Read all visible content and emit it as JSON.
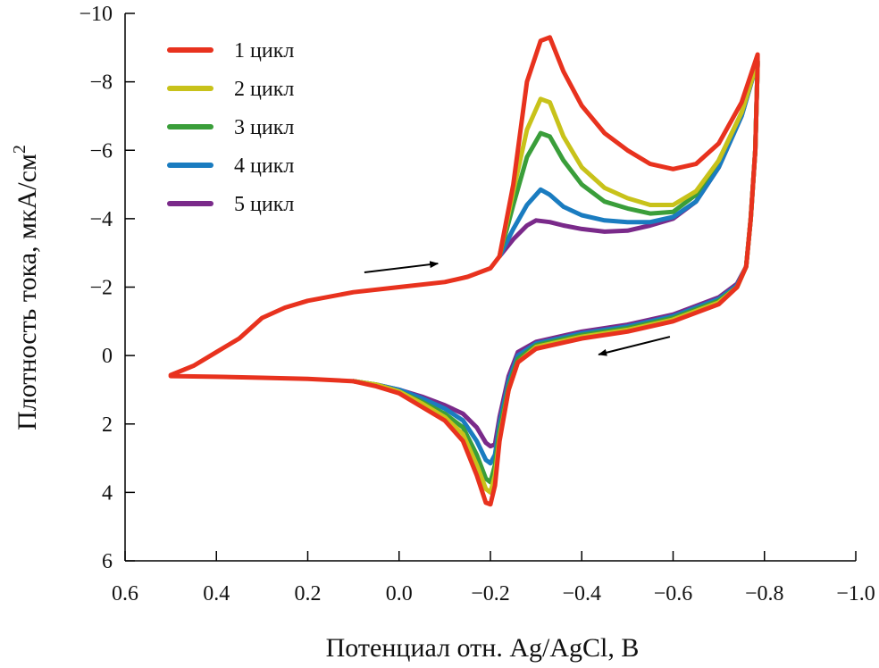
{
  "chart_data": {
    "type": "line",
    "xlabel": "Потенциал отн. Ag/AgCl, В",
    "ylabel_main": "Плотность тока, мкА/см",
    "ylabel_sup": "2",
    "xlim": [
      0.6,
      -1.0
    ],
    "ylim": [
      -10,
      6
    ],
    "x_reversed": true,
    "y_reversed": true,
    "grid": false,
    "legend_position": "top-left",
    "xticks": [
      0.6,
      0.4,
      0.2,
      0.0,
      -0.2,
      -0.4,
      -0.6,
      -0.8,
      -1.0
    ],
    "xtick_labels": [
      "0.6",
      "0.4",
      "0.2",
      "0.0",
      "−0.2",
      "−0.4",
      "−0.6",
      "−0.8",
      "−1.0"
    ],
    "yticks": [
      -10,
      -8,
      -6,
      -4,
      -2,
      0,
      2,
      4,
      6
    ],
    "ytick_labels": [
      "−10",
      "−8",
      "−6",
      "−4",
      "−2",
      "0",
      "2",
      "4",
      "6"
    ],
    "annotations": [
      {
        "type": "arrow",
        "from": [
          0.076,
          -2.43
        ],
        "to": [
          -0.085,
          -2.69
        ]
      },
      {
        "type": "arrow",
        "from": [
          -0.593,
          -0.55
        ],
        "to": [
          -0.437,
          -0.03
        ]
      }
    ],
    "series": [
      {
        "name": "1 цикл",
        "color": "#e8321e",
        "points": [
          [
            0.5,
            0.57
          ],
          [
            0.45,
            0.3
          ],
          [
            0.4,
            -0.1
          ],
          [
            0.35,
            -0.5
          ],
          [
            0.3,
            -1.1
          ],
          [
            0.25,
            -1.4
          ],
          [
            0.2,
            -1.6
          ],
          [
            0.1,
            -1.85
          ],
          [
            0.0,
            -2.0
          ],
          [
            -0.1,
            -2.15
          ],
          [
            -0.15,
            -2.3
          ],
          [
            -0.2,
            -2.55
          ],
          [
            -0.22,
            -2.9
          ],
          [
            -0.25,
            -5.0
          ],
          [
            -0.28,
            -8.0
          ],
          [
            -0.31,
            -9.2
          ],
          [
            -0.33,
            -9.3
          ],
          [
            -0.36,
            -8.3
          ],
          [
            -0.4,
            -7.3
          ],
          [
            -0.45,
            -6.5
          ],
          [
            -0.5,
            -6.0
          ],
          [
            -0.55,
            -5.6
          ],
          [
            -0.6,
            -5.45
          ],
          [
            -0.65,
            -5.6
          ],
          [
            -0.7,
            -6.2
          ],
          [
            -0.75,
            -7.4
          ],
          [
            -0.785,
            -8.8
          ],
          [
            -0.785,
            -8.5
          ],
          [
            -0.78,
            -6.0
          ],
          [
            -0.77,
            -4.0
          ],
          [
            -0.76,
            -2.6
          ],
          [
            -0.74,
            -2.0
          ],
          [
            -0.7,
            -1.5
          ],
          [
            -0.6,
            -1.0
          ],
          [
            -0.5,
            -0.7
          ],
          [
            -0.4,
            -0.5
          ],
          [
            -0.3,
            -0.2
          ],
          [
            -0.26,
            0.2
          ],
          [
            -0.24,
            1.0
          ],
          [
            -0.22,
            2.5
          ],
          [
            -0.21,
            3.8
          ],
          [
            -0.2,
            4.35
          ],
          [
            -0.19,
            4.3
          ],
          [
            -0.17,
            3.5
          ],
          [
            -0.14,
            2.5
          ],
          [
            -0.1,
            1.9
          ],
          [
            -0.05,
            1.5
          ],
          [
            0.0,
            1.1
          ],
          [
            0.05,
            0.9
          ],
          [
            0.1,
            0.75
          ],
          [
            0.2,
            0.68
          ],
          [
            0.3,
            0.65
          ],
          [
            0.4,
            0.62
          ],
          [
            0.5,
            0.6
          ]
        ]
      },
      {
        "name": "2 цикл",
        "color": "#c8c21a",
        "points": [
          [
            -0.22,
            -2.9
          ],
          [
            -0.25,
            -4.8
          ],
          [
            -0.28,
            -6.6
          ],
          [
            -0.31,
            -7.5
          ],
          [
            -0.33,
            -7.4
          ],
          [
            -0.36,
            -6.4
          ],
          [
            -0.4,
            -5.5
          ],
          [
            -0.45,
            -4.9
          ],
          [
            -0.5,
            -4.6
          ],
          [
            -0.55,
            -4.4
          ],
          [
            -0.6,
            -4.4
          ],
          [
            -0.65,
            -4.8
          ],
          [
            -0.7,
            -5.7
          ],
          [
            -0.75,
            -7.1
          ],
          [
            -0.785,
            -8.6
          ],
          [
            -0.785,
            -8.5
          ],
          [
            -0.78,
            -6.0
          ],
          [
            -0.77,
            -4.0
          ],
          [
            -0.76,
            -2.6
          ],
          [
            -0.74,
            -2.0
          ],
          [
            -0.7,
            -1.55
          ],
          [
            -0.6,
            -1.05
          ],
          [
            -0.5,
            -0.75
          ],
          [
            -0.4,
            -0.55
          ],
          [
            -0.3,
            -0.25
          ],
          [
            -0.26,
            0.2
          ],
          [
            -0.24,
            1.0
          ],
          [
            -0.22,
            2.4
          ],
          [
            -0.21,
            3.5
          ],
          [
            -0.2,
            4.0
          ],
          [
            -0.19,
            3.9
          ],
          [
            -0.17,
            3.2
          ],
          [
            -0.14,
            2.3
          ],
          [
            -0.1,
            1.8
          ],
          [
            -0.05,
            1.4
          ],
          [
            0.0,
            1.05
          ],
          [
            0.05,
            0.85
          ],
          [
            0.1,
            0.75
          ]
        ]
      },
      {
        "name": "3 цикл",
        "color": "#3a9e3a",
        "points": [
          [
            -0.22,
            -2.9
          ],
          [
            -0.25,
            -4.4
          ],
          [
            -0.28,
            -5.8
          ],
          [
            -0.31,
            -6.5
          ],
          [
            -0.33,
            -6.4
          ],
          [
            -0.36,
            -5.7
          ],
          [
            -0.4,
            -5.0
          ],
          [
            -0.45,
            -4.5
          ],
          [
            -0.5,
            -4.3
          ],
          [
            -0.55,
            -4.15
          ],
          [
            -0.6,
            -4.2
          ],
          [
            -0.65,
            -4.7
          ],
          [
            -0.7,
            -5.7
          ],
          [
            -0.75,
            -7.1
          ],
          [
            -0.785,
            -8.6
          ],
          [
            -0.785,
            -8.5
          ],
          [
            -0.78,
            -6.0
          ],
          [
            -0.77,
            -4.0
          ],
          [
            -0.76,
            -2.6
          ],
          [
            -0.74,
            -2.0
          ],
          [
            -0.7,
            -1.6
          ],
          [
            -0.6,
            -1.1
          ],
          [
            -0.5,
            -0.8
          ],
          [
            -0.4,
            -0.6
          ],
          [
            -0.3,
            -0.3
          ],
          [
            -0.26,
            0.1
          ],
          [
            -0.24,
            0.9
          ],
          [
            -0.22,
            2.2
          ],
          [
            -0.21,
            3.2
          ],
          [
            -0.2,
            3.7
          ],
          [
            -0.19,
            3.6
          ],
          [
            -0.17,
            2.9
          ],
          [
            -0.14,
            2.1
          ],
          [
            -0.1,
            1.7
          ],
          [
            -0.05,
            1.35
          ],
          [
            0.0,
            1.05
          ],
          [
            0.05,
            0.85
          ],
          [
            0.1,
            0.75
          ]
        ]
      },
      {
        "name": "4 цикл",
        "color": "#1a7cc0",
        "points": [
          [
            -0.22,
            -2.9
          ],
          [
            -0.25,
            -3.7
          ],
          [
            -0.28,
            -4.4
          ],
          [
            -0.31,
            -4.85
          ],
          [
            -0.33,
            -4.7
          ],
          [
            -0.36,
            -4.35
          ],
          [
            -0.4,
            -4.1
          ],
          [
            -0.45,
            -3.95
          ],
          [
            -0.5,
            -3.9
          ],
          [
            -0.55,
            -3.9
          ],
          [
            -0.6,
            -4.05
          ],
          [
            -0.65,
            -4.5
          ],
          [
            -0.7,
            -5.5
          ],
          [
            -0.75,
            -7.0
          ],
          [
            -0.785,
            -8.6
          ],
          [
            -0.785,
            -8.5
          ],
          [
            -0.78,
            -6.0
          ],
          [
            -0.77,
            -4.0
          ],
          [
            -0.76,
            -2.6
          ],
          [
            -0.74,
            -2.05
          ],
          [
            -0.7,
            -1.65
          ],
          [
            -0.6,
            -1.15
          ],
          [
            -0.5,
            -0.85
          ],
          [
            -0.4,
            -0.65
          ],
          [
            -0.3,
            -0.35
          ],
          [
            -0.26,
            0.0
          ],
          [
            -0.24,
            0.75
          ],
          [
            -0.22,
            2.0
          ],
          [
            -0.21,
            2.9
          ],
          [
            -0.2,
            3.15
          ],
          [
            -0.19,
            3.05
          ],
          [
            -0.17,
            2.5
          ],
          [
            -0.14,
            1.9
          ],
          [
            -0.1,
            1.55
          ],
          [
            -0.05,
            1.25
          ],
          [
            0.0,
            1.0
          ],
          [
            0.05,
            0.85
          ],
          [
            0.1,
            0.75
          ]
        ]
      },
      {
        "name": "5 цикл",
        "color": "#7a2a8a",
        "points": [
          [
            -0.22,
            -2.9
          ],
          [
            -0.25,
            -3.4
          ],
          [
            -0.28,
            -3.8
          ],
          [
            -0.3,
            -3.95
          ],
          [
            -0.33,
            -3.9
          ],
          [
            -0.36,
            -3.8
          ],
          [
            -0.4,
            -3.7
          ],
          [
            -0.45,
            -3.62
          ],
          [
            -0.5,
            -3.65
          ],
          [
            -0.55,
            -3.8
          ],
          [
            -0.6,
            -4.0
          ],
          [
            -0.65,
            -4.5
          ],
          [
            -0.7,
            -5.5
          ],
          [
            -0.75,
            -7.0
          ],
          [
            -0.785,
            -8.6
          ],
          [
            -0.785,
            -8.5
          ],
          [
            -0.78,
            -6.0
          ],
          [
            -0.77,
            -4.0
          ],
          [
            -0.76,
            -2.6
          ],
          [
            -0.74,
            -2.1
          ],
          [
            -0.7,
            -1.7
          ],
          [
            -0.6,
            -1.2
          ],
          [
            -0.5,
            -0.9
          ],
          [
            -0.4,
            -0.7
          ],
          [
            -0.3,
            -0.4
          ],
          [
            -0.26,
            -0.1
          ],
          [
            -0.24,
            0.6
          ],
          [
            -0.22,
            1.8
          ],
          [
            -0.21,
            2.6
          ],
          [
            -0.2,
            2.65
          ],
          [
            -0.19,
            2.55
          ],
          [
            -0.17,
            2.1
          ],
          [
            -0.14,
            1.7
          ],
          [
            -0.1,
            1.45
          ],
          [
            -0.05,
            1.2
          ],
          [
            0.0,
            1.0
          ],
          [
            0.05,
            0.85
          ],
          [
            0.1,
            0.75
          ]
        ]
      }
    ]
  }
}
